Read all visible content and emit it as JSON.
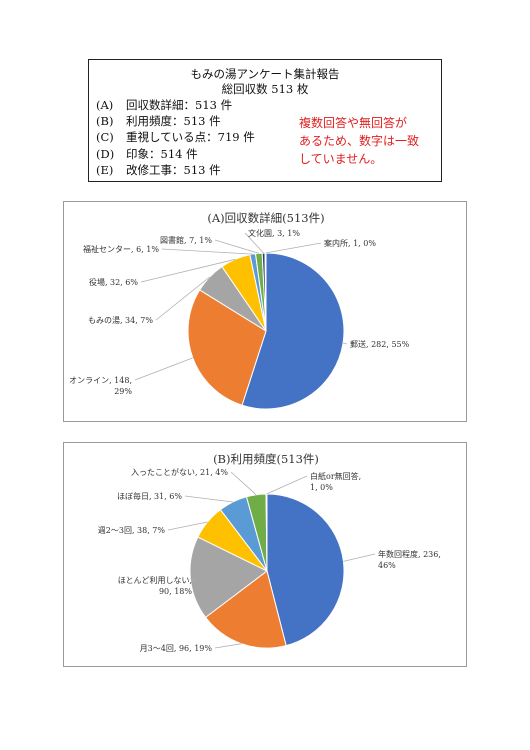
{
  "summary": {
    "title": "もみの湯アンケート集計報告",
    "subtitle": "総回収数 513 枚",
    "items": [
      {
        "key": "(A)",
        "text": "回収数詳細：513 件"
      },
      {
        "key": "(B)",
        "text": "利用頻度：513 件"
      },
      {
        "key": "(C)",
        "text": "重視している点：719 件"
      },
      {
        "key": "(D)",
        "text": "印象：514 件"
      },
      {
        "key": "(E)",
        "text": "改修工事：513 件"
      }
    ],
    "note": [
      "複数回答や無回答が",
      "あるため、数字は一致",
      "していません。"
    ],
    "note_color": "#e02020"
  },
  "chart_data": [
    {
      "type": "pie",
      "title": "(A)回収数詳細(513件)",
      "categories": [
        "郵送",
        "オンライン",
        "もみの湯",
        "役場",
        "福祉センター",
        "図書館",
        "文化園",
        "案内所"
      ],
      "values": [
        282,
        148,
        34,
        32,
        6,
        7,
        3,
        1
      ],
      "percents": [
        "55%",
        "29%",
        "7%",
        "6%",
        "1%",
        "1%",
        "1%",
        "0%"
      ],
      "labels": [
        [
          "郵送, 282, 55%"
        ],
        [
          "オンライン, 148,",
          "29%"
        ],
        [
          "もみの湯, 34, 7%"
        ],
        [
          "役場, 32, 6%"
        ],
        [
          "福祉センター, 6, 1%"
        ],
        [
          "図書館, 7, 1%"
        ],
        [
          "文化園, 3, 1%"
        ],
        [
          "案内所, 1, 0%"
        ]
      ],
      "colors": [
        "#4472c4",
        "#ed7d31",
        "#a5a5a5",
        "#ffc000",
        "#5b9bd5",
        "#70ad47",
        "#264478",
        "#9e480e"
      ],
      "legend": "none"
    },
    {
      "type": "pie",
      "title": "(B)利用頻度(513件)",
      "categories": [
        "年数回程度",
        "月3～4回",
        "ほとんど利用しない",
        "週2～3回",
        "ほぼ毎日",
        "入ったことがない",
        "白紙or無回答"
      ],
      "values": [
        236,
        96,
        90,
        38,
        31,
        21,
        1
      ],
      "percents": [
        "46%",
        "19%",
        "18%",
        "7%",
        "6%",
        "4%",
        "0%"
      ],
      "labels": [
        [
          "年数回程度, 236,",
          "46%"
        ],
        [
          "月3～4回, 96, 19%"
        ],
        [
          "ほとんど利用しない,",
          "90, 18%"
        ],
        [
          "週2～3回, 38, 7%"
        ],
        [
          "ほぼ毎日, 31, 6%"
        ],
        [
          "入ったことがない, 21, 4%"
        ],
        [
          "白紙or無回答,",
          "1, 0%"
        ]
      ],
      "colors": [
        "#4472c4",
        "#ed7d31",
        "#a5a5a5",
        "#ffc000",
        "#5b9bd5",
        "#70ad47",
        "#264478"
      ],
      "legend": "none"
    }
  ]
}
